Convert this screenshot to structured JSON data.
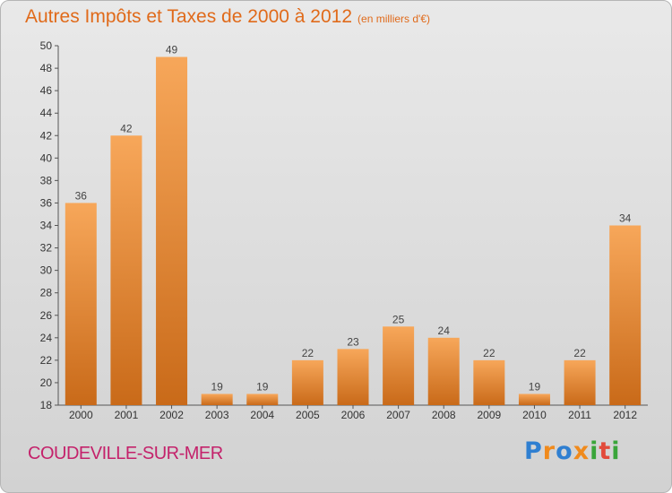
{
  "title": "Autres Impôts et Taxes de 2000 à 2012",
  "subtitle": "(en milliers d'€)",
  "place": "COUDEVILLE-SUR-MER",
  "logo": {
    "letters": [
      "P",
      "r",
      "o",
      "x",
      "i",
      "t",
      "i"
    ],
    "colors": [
      "#2f7fd1",
      "#f08a1c",
      "#2f7fd1",
      "#f08a1c",
      "#3aa53a",
      "#e24a3a",
      "#3aa53a"
    ]
  },
  "chart_data": {
    "type": "bar",
    "title": "Autres Impôts et Taxes de 2000 à 2012",
    "subtitle": "(en milliers d'€)",
    "categories": [
      "2000",
      "2001",
      "2002",
      "2003",
      "2004",
      "2005",
      "2006",
      "2007",
      "2008",
      "2009",
      "2010",
      "2011",
      "2012"
    ],
    "values": [
      36,
      42,
      49,
      19,
      19,
      22,
      23,
      25,
      24,
      22,
      19,
      22,
      34
    ],
    "ylim": [
      18,
      50
    ],
    "yticks": [
      18,
      20,
      22,
      24,
      26,
      28,
      30,
      32,
      34,
      36,
      38,
      40,
      42,
      44,
      46,
      48,
      50
    ],
    "grid": false,
    "colors": {
      "bar_light": "#f7a75a",
      "bar_dark": "#c96a19",
      "label": "#444444"
    }
  }
}
